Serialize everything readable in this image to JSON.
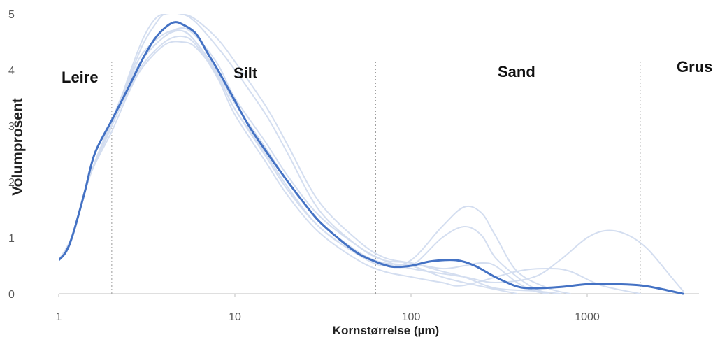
{
  "chart_data": {
    "type": "line",
    "title": "",
    "xlabel": "Kornstørrelse (µm)",
    "ylabel": "Volumprosent",
    "x_scale": "log",
    "xlim": [
      1,
      3800
    ],
    "ylim": [
      0,
      5
    ],
    "x_ticks": [
      1,
      10,
      100,
      1000
    ],
    "y_ticks": [
      0,
      1,
      2,
      3,
      4,
      5
    ],
    "grid": false,
    "legend": "none",
    "zones": [
      {
        "label": "Leire",
        "x": 1.0
      },
      {
        "label": "Silt",
        "x": 2.0
      },
      {
        "label": "Sand",
        "x": 63
      },
      {
        "label": "Grus",
        "x": 2000
      }
    ],
    "boundaries": [
      2,
      63,
      2000
    ],
    "series": [
      {
        "color": "#4472c4",
        "emphasis": "mean",
        "points": [
          [
            1,
            0.6
          ],
          [
            1.1,
            0.75
          ],
          [
            1.2,
            1.05
          ],
          [
            1.4,
            1.8
          ],
          [
            1.6,
            2.5
          ],
          [
            2,
            3.1
          ],
          [
            2.5,
            3.7
          ],
          [
            3,
            4.2
          ],
          [
            3.5,
            4.55
          ],
          [
            4,
            4.75
          ],
          [
            4.5,
            4.85
          ],
          [
            5,
            4.82
          ],
          [
            6,
            4.65
          ],
          [
            7,
            4.3
          ],
          [
            8,
            4.0
          ],
          [
            10,
            3.45
          ],
          [
            12,
            3.0
          ],
          [
            15,
            2.55
          ],
          [
            20,
            2.0
          ],
          [
            25,
            1.6
          ],
          [
            30,
            1.3
          ],
          [
            40,
            0.95
          ],
          [
            50,
            0.72
          ],
          [
            60,
            0.6
          ],
          [
            70,
            0.52
          ],
          [
            80,
            0.48
          ],
          [
            100,
            0.5
          ],
          [
            130,
            0.58
          ],
          [
            180,
            0.6
          ],
          [
            230,
            0.5
          ],
          [
            300,
            0.3
          ],
          [
            400,
            0.13
          ],
          [
            500,
            0.1
          ],
          [
            700,
            0.12
          ],
          [
            1000,
            0.17
          ],
          [
            1500,
            0.17
          ],
          [
            2000,
            0.15
          ],
          [
            2500,
            0.1
          ],
          [
            3500,
            0.0
          ]
        ]
      },
      {
        "color": "#d4def0",
        "points": [
          [
            1,
            0.6
          ],
          [
            1.2,
            1.05
          ],
          [
            1.5,
            2.1
          ],
          [
            2,
            3.0
          ],
          [
            2.5,
            3.9
          ],
          [
            3,
            4.55
          ],
          [
            3.5,
            4.9
          ],
          [
            4,
            5.0
          ],
          [
            5,
            5.0
          ],
          [
            6,
            4.85
          ],
          [
            8,
            4.4
          ],
          [
            10,
            4.0
          ],
          [
            15,
            3.2
          ],
          [
            20,
            2.5
          ],
          [
            30,
            1.5
          ],
          [
            50,
            0.85
          ],
          [
            70,
            0.6
          ],
          [
            100,
            0.55
          ],
          [
            150,
            0.4
          ],
          [
            200,
            0.3
          ],
          [
            300,
            0.1
          ],
          [
            500,
            0.05
          ],
          [
            700,
            0.0
          ]
        ]
      },
      {
        "color": "#d4def0",
        "points": [
          [
            1,
            0.6
          ],
          [
            1.2,
            1.05
          ],
          [
            1.5,
            2.1
          ],
          [
            2,
            2.9
          ],
          [
            2.5,
            3.6
          ],
          [
            3,
            4.05
          ],
          [
            4,
            4.45
          ],
          [
            5,
            4.5
          ],
          [
            6,
            4.4
          ],
          [
            8,
            3.9
          ],
          [
            10,
            3.3
          ],
          [
            15,
            2.5
          ],
          [
            20,
            1.9
          ],
          [
            30,
            1.2
          ],
          [
            50,
            0.7
          ],
          [
            70,
            0.55
          ],
          [
            100,
            0.5
          ],
          [
            150,
            0.3
          ],
          [
            200,
            0.2
          ],
          [
            300,
            0.08
          ],
          [
            400,
            0.0
          ]
        ]
      },
      {
        "color": "#d4def0",
        "points": [
          [
            1,
            0.6
          ],
          [
            1.2,
            1.05
          ],
          [
            1.5,
            2.1
          ],
          [
            2,
            3.0
          ],
          [
            2.5,
            3.65
          ],
          [
            3,
            4.1
          ],
          [
            4,
            4.5
          ],
          [
            5,
            4.6
          ],
          [
            6,
            4.45
          ],
          [
            8,
            3.85
          ],
          [
            10,
            3.2
          ],
          [
            15,
            2.35
          ],
          [
            20,
            1.75
          ],
          [
            30,
            1.1
          ],
          [
            50,
            0.6
          ],
          [
            70,
            0.4
          ],
          [
            100,
            0.3
          ],
          [
            150,
            0.2
          ],
          [
            200,
            0.15
          ],
          [
            400,
            0.4
          ],
          [
            600,
            0.45
          ],
          [
            800,
            0.4
          ],
          [
            1200,
            0.15
          ],
          [
            2000,
            0.0
          ]
        ]
      },
      {
        "color": "#d4def0",
        "points": [
          [
            1,
            0.6
          ],
          [
            1.2,
            1.05
          ],
          [
            1.5,
            2.1
          ],
          [
            2,
            3.1
          ],
          [
            2.5,
            3.8
          ],
          [
            3,
            4.3
          ],
          [
            4,
            4.65
          ],
          [
            5,
            4.7
          ],
          [
            6,
            4.5
          ],
          [
            8,
            3.95
          ],
          [
            10,
            3.4
          ],
          [
            15,
            2.6
          ],
          [
            20,
            2.0
          ],
          [
            30,
            1.3
          ],
          [
            50,
            0.75
          ],
          [
            70,
            0.55
          ],
          [
            100,
            0.5
          ],
          [
            150,
            1.0
          ],
          [
            200,
            1.2
          ],
          [
            250,
            1.05
          ],
          [
            300,
            0.65
          ],
          [
            400,
            0.3
          ],
          [
            500,
            0.1
          ],
          [
            600,
            0.0
          ]
        ]
      },
      {
        "color": "#d4def0",
        "points": [
          [
            1,
            0.6
          ],
          [
            1.2,
            1.05
          ],
          [
            1.5,
            2.1
          ],
          [
            2,
            3.05
          ],
          [
            2.5,
            3.75
          ],
          [
            3,
            4.2
          ],
          [
            4,
            4.6
          ],
          [
            5,
            4.7
          ],
          [
            6,
            4.5
          ],
          [
            8,
            3.9
          ],
          [
            10,
            3.3
          ],
          [
            15,
            2.45
          ],
          [
            20,
            1.85
          ],
          [
            30,
            1.2
          ],
          [
            50,
            0.7
          ],
          [
            70,
            0.5
          ],
          [
            100,
            0.6
          ],
          [
            150,
            1.2
          ],
          [
            200,
            1.55
          ],
          [
            250,
            1.45
          ],
          [
            300,
            1.05
          ],
          [
            400,
            0.4
          ],
          [
            600,
            0.1
          ],
          [
            800,
            0.0
          ]
        ]
      },
      {
        "color": "#d4def0",
        "points": [
          [
            1,
            0.6
          ],
          [
            1.2,
            1.05
          ],
          [
            1.5,
            2.1
          ],
          [
            2,
            3.0
          ],
          [
            2.5,
            3.7
          ],
          [
            3,
            4.2
          ],
          [
            4,
            4.6
          ],
          [
            5,
            4.75
          ],
          [
            6,
            4.6
          ],
          [
            8,
            4.1
          ],
          [
            10,
            3.5
          ],
          [
            15,
            2.7
          ],
          [
            20,
            2.1
          ],
          [
            30,
            1.4
          ],
          [
            50,
            0.85
          ],
          [
            70,
            0.6
          ],
          [
            100,
            0.45
          ],
          [
            200,
            0.3
          ],
          [
            300,
            0.2
          ],
          [
            500,
            0.3
          ],
          [
            700,
            0.6
          ],
          [
            1000,
            1.0
          ],
          [
            1300,
            1.13
          ],
          [
            1700,
            1.05
          ],
          [
            2200,
            0.8
          ],
          [
            3000,
            0.3
          ],
          [
            3500,
            0.05
          ]
        ]
      },
      {
        "color": "#d4def0",
        "points": [
          [
            1,
            0.6
          ],
          [
            1.2,
            1.05
          ],
          [
            1.5,
            2.1
          ],
          [
            2,
            3.1
          ],
          [
            2.5,
            3.85
          ],
          [
            3,
            4.45
          ],
          [
            3.5,
            4.8
          ],
          [
            4,
            5.0
          ],
          [
            5,
            5.0
          ],
          [
            6,
            4.9
          ],
          [
            8,
            4.55
          ],
          [
            10,
            4.15
          ],
          [
            15,
            3.35
          ],
          [
            20,
            2.65
          ],
          [
            30,
            1.65
          ],
          [
            50,
            0.95
          ],
          [
            70,
            0.65
          ],
          [
            100,
            0.55
          ],
          [
            150,
            0.45
          ],
          [
            200,
            0.5
          ],
          [
            250,
            0.55
          ],
          [
            300,
            0.5
          ],
          [
            400,
            0.2
          ],
          [
            500,
            0.05
          ],
          [
            600,
            0.0
          ]
        ]
      }
    ]
  }
}
